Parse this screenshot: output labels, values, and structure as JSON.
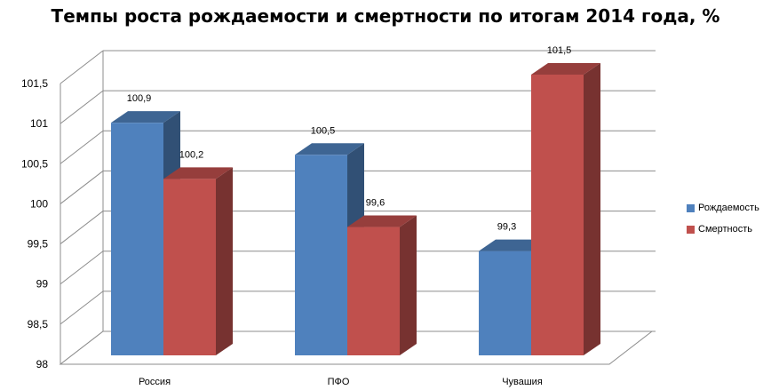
{
  "chart_data": {
    "type": "bar",
    "title": "Темпы роста рождаемости и смертности по итогам 2014 года, %",
    "categories": [
      "Россия",
      "ПФО",
      "Чувашия"
    ],
    "series": [
      {
        "name": "Рождаемость",
        "color": "#4f81bd",
        "values": [
          100.9,
          100.5,
          99.3
        ],
        "labels": [
          "100,9",
          "100,5",
          "99,3"
        ]
      },
      {
        "name": "Смертность",
        "color": "#c0504d",
        "values": [
          100.2,
          99.6,
          101.5
        ],
        "labels": [
          "100,2",
          "99,6",
          "101,5"
        ]
      }
    ],
    "ylim": [
      98,
      101.5
    ],
    "yticks": [
      98,
      98.5,
      99,
      99.5,
      100,
      100.5,
      101,
      101.5
    ],
    "ytick_labels": [
      "98",
      "98,5",
      "99",
      "99,5",
      "100",
      "100,5",
      "101",
      "101,5"
    ],
    "grid": true,
    "legend": "right",
    "style": "3d-clustered-column"
  }
}
